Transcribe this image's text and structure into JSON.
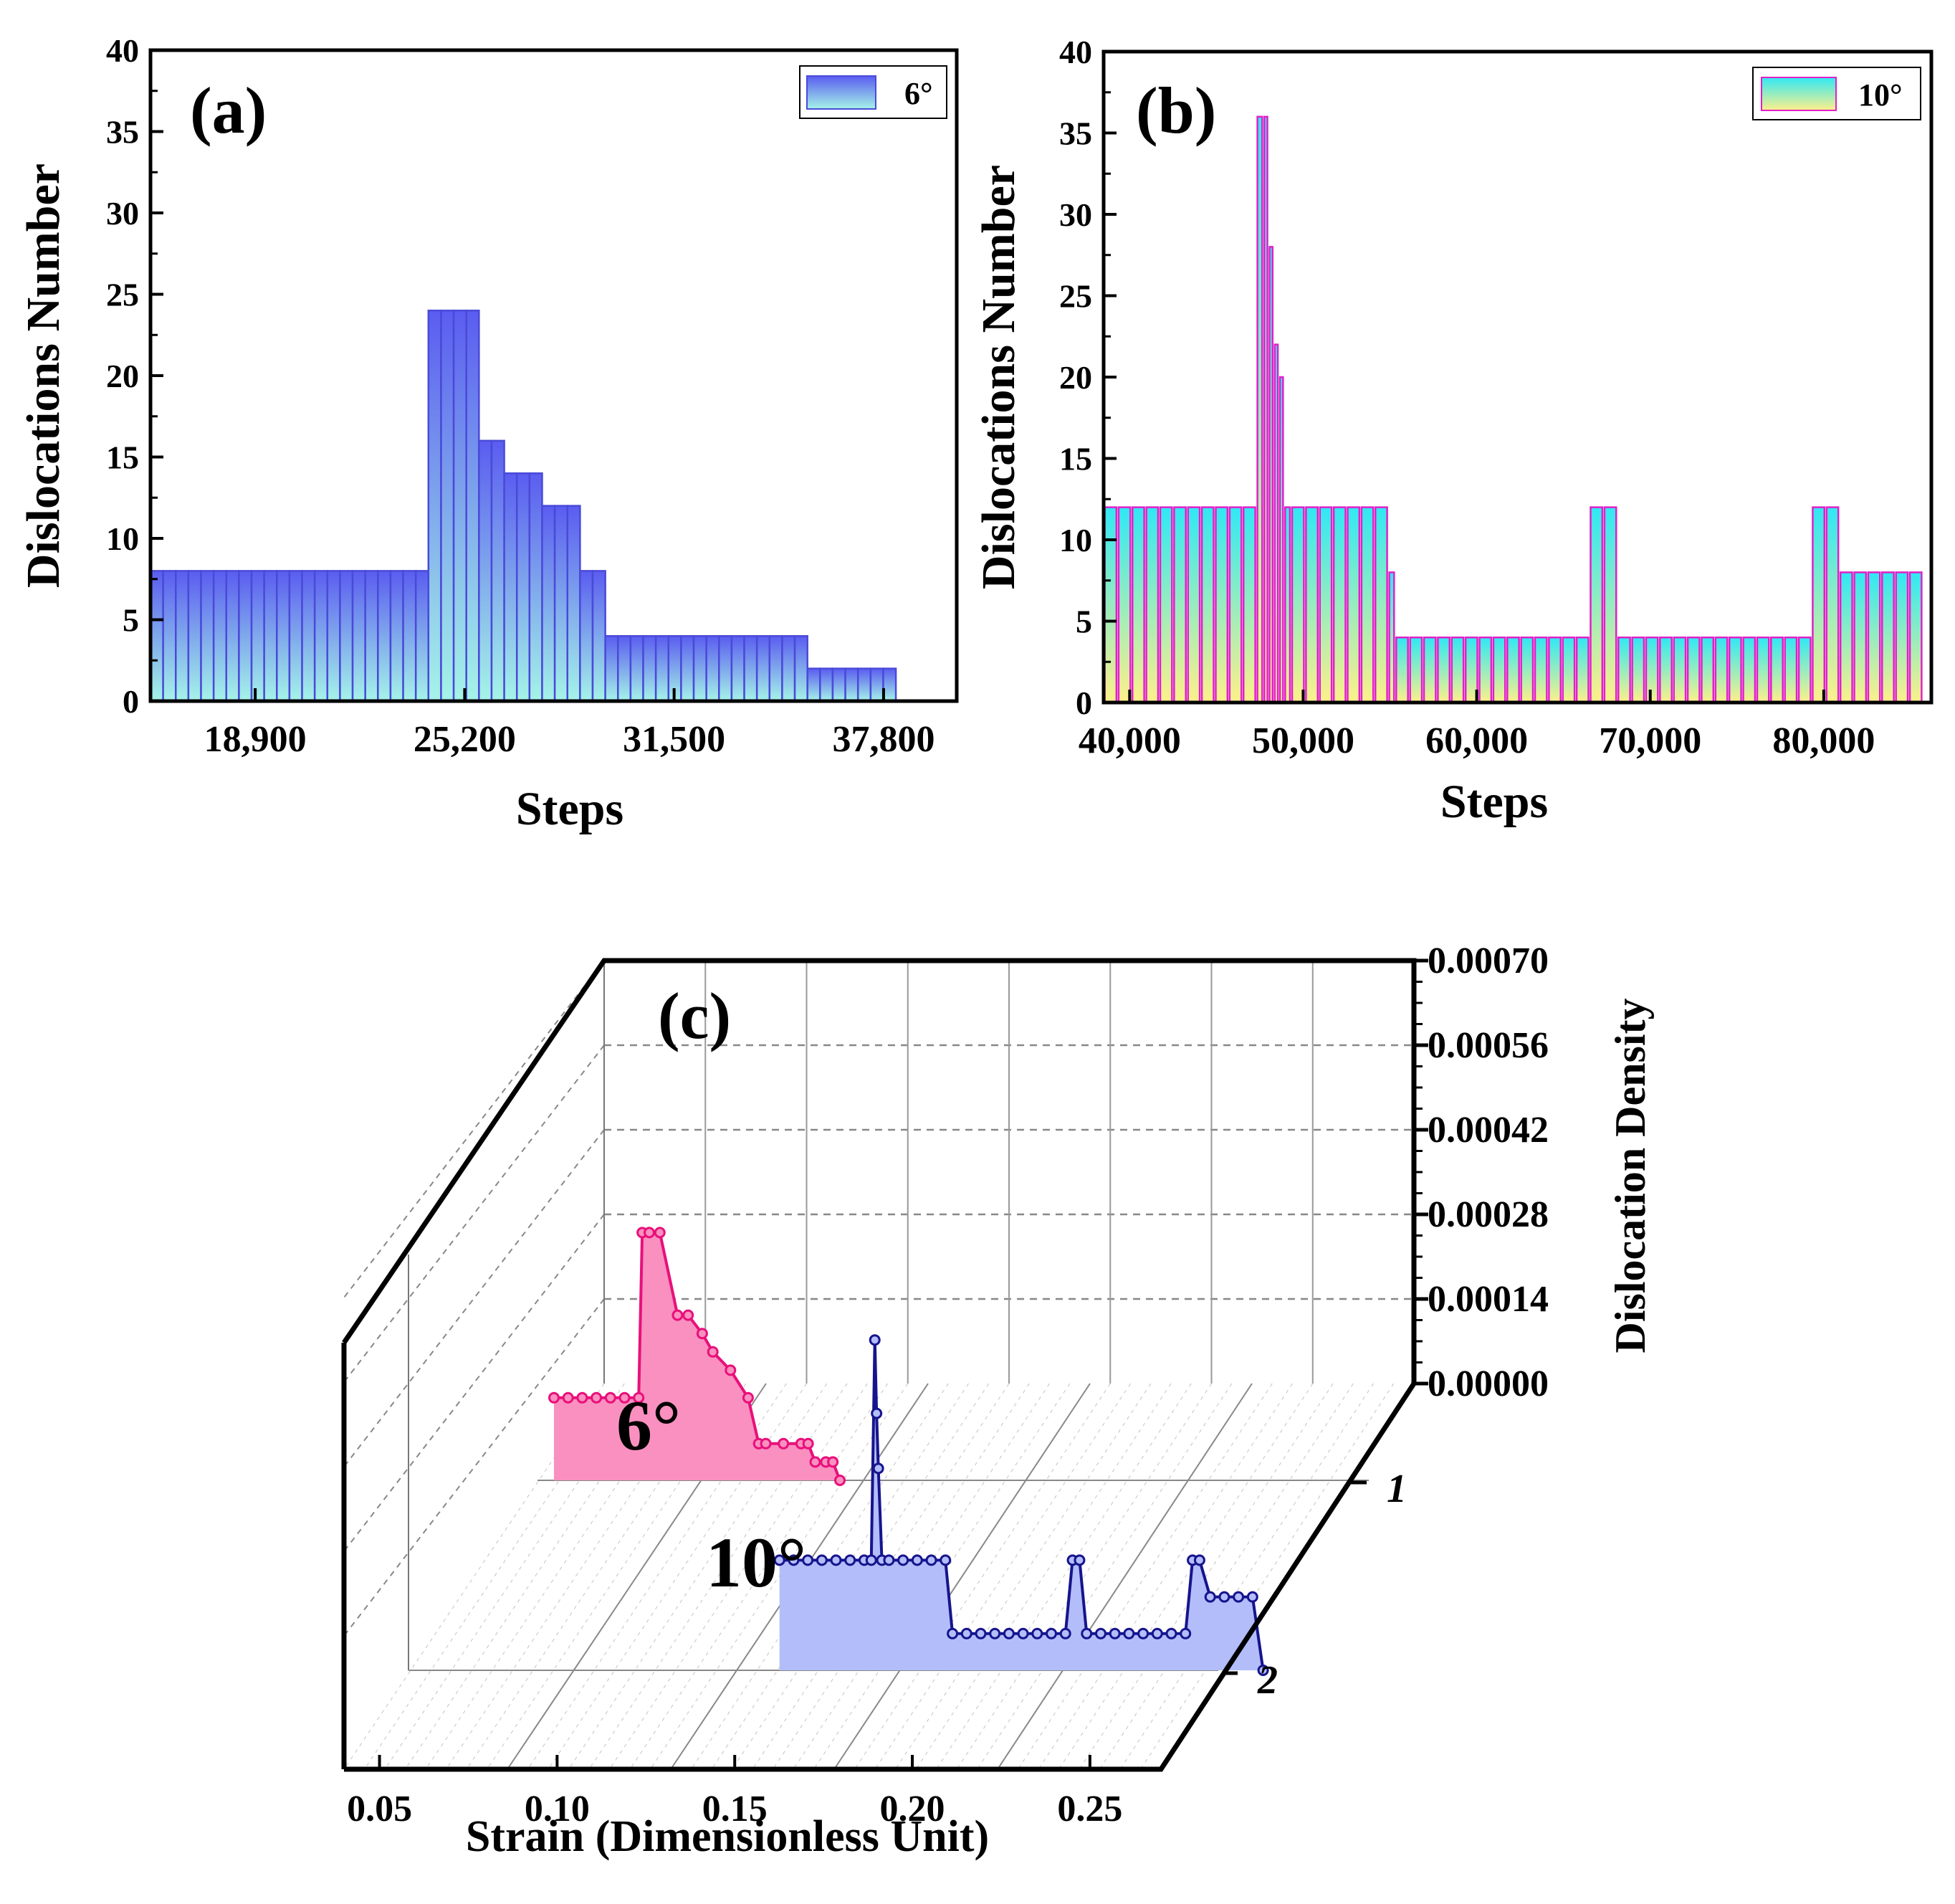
{
  "chart_data": [
    {
      "panel": "a",
      "type": "bar",
      "panel_label": "(a)",
      "xlabel": "Steps",
      "ylabel": "Dislocations Number",
      "xlim": [
        15750,
        40000
      ],
      "ylim": [
        0,
        40
      ],
      "xticks": [
        "18,900",
        "25,200",
        "31,500",
        "37,800"
      ],
      "xtick_values": [
        18900,
        25200,
        31500,
        37800
      ],
      "yticks": [
        "0",
        "5",
        "10",
        "15",
        "20",
        "25",
        "30",
        "35",
        "40"
      ],
      "legend": "6°",
      "colors": {
        "top": "#5a5cf0",
        "bottom": "#a5f4e8",
        "edge": "#4a4ad8"
      },
      "bin_edges": [
        15750,
        16130,
        16510,
        16890,
        17270,
        17650,
        18030,
        18410,
        18790,
        19170,
        19550,
        19930,
        20310,
        20690,
        21070,
        21450,
        21830,
        22210,
        22590,
        22970,
        23350,
        23730,
        24110,
        24490,
        24870,
        25250,
        25630,
        26010,
        26390,
        26770,
        27150,
        27530,
        27910,
        28290,
        28670,
        29050,
        29430,
        29810,
        30190,
        30570,
        30950,
        31330,
        31710,
        32090,
        32470,
        32850,
        33230,
        33610,
        33990,
        34370,
        34750,
        35130,
        35510,
        35890,
        36270,
        36650,
        37030,
        37410,
        37790,
        38170
      ],
      "values": [
        8,
        8,
        8,
        8,
        8,
        8,
        8,
        8,
        8,
        8,
        8,
        8,
        8,
        8,
        8,
        8,
        8,
        8,
        8,
        8,
        8,
        8,
        24,
        24,
        24,
        24,
        16,
        16,
        14,
        14,
        14,
        12,
        12,
        12,
        8,
        8,
        4,
        4,
        4,
        4,
        4,
        4,
        4,
        4,
        4,
        4,
        4,
        4,
        4,
        4,
        4,
        4,
        2,
        2,
        2,
        2,
        2,
        2,
        2
      ]
    },
    {
      "panel": "b",
      "type": "bar",
      "panel_label": "(b)",
      "xlabel": "Steps",
      "ylabel": "Dislocations Number",
      "xlim": [
        38500,
        86200
      ],
      "ylim": [
        0,
        40
      ],
      "xticks": [
        "40,000",
        "50,000",
        "60,000",
        "70,000",
        "80,000"
      ],
      "xtick_values": [
        40000,
        50000,
        60000,
        70000,
        80000
      ],
      "yticks": [
        "0",
        "5",
        "10",
        "15",
        "20",
        "25",
        "30",
        "35",
        "40"
      ],
      "legend": "10°",
      "colors": {
        "top": "#30e8f4",
        "bottom": "#fef08a",
        "edge": "#e020c8"
      },
      "bin_edges": [
        38500,
        39300,
        40100,
        40900,
        41700,
        42500,
        43300,
        44100,
        44900,
        45700,
        46500,
        47300,
        47700,
        48000,
        48300,
        48600,
        48900,
        49300,
        50100,
        50900,
        51700,
        52500,
        53300,
        54100,
        54900,
        55300,
        56100,
        56900,
        57700,
        58500,
        59300,
        60100,
        60900,
        61700,
        62500,
        63300,
        64100,
        64900,
        65700,
        66500,
        67300,
        68100,
        68900,
        69700,
        70500,
        71300,
        72100,
        72900,
        73700,
        74500,
        75300,
        76100,
        76900,
        77700,
        78500,
        79300,
        80100,
        80900,
        81700,
        82500,
        83300,
        84100,
        84900,
        85700
      ],
      "values": [
        12,
        12,
        12,
        12,
        12,
        12,
        12,
        12,
        12,
        12,
        12,
        36,
        36,
        28,
        22,
        20,
        12,
        12,
        12,
        12,
        12,
        12,
        12,
        12,
        8,
        4,
        4,
        4,
        4,
        4,
        4,
        4,
        4,
        4,
        4,
        4,
        4,
        4,
        4,
        12,
        12,
        4,
        4,
        4,
        4,
        4,
        4,
        4,
        4,
        4,
        4,
        4,
        4,
        4,
        4,
        12,
        12,
        8,
        8,
        8,
        8,
        8,
        8
      ]
    },
    {
      "panel": "c",
      "type": "area",
      "panel_label": "(c)",
      "xlabel": "Strain (Dimensionless Unit)",
      "zlabel": "Dislocation Density",
      "xlim": [
        0.04,
        0.27
      ],
      "xticks": [
        "0.05",
        "0.10",
        "0.15",
        "0.20",
        "0.25"
      ],
      "xtick_values": [
        0.05,
        0.1,
        0.15,
        0.2,
        0.25
      ],
      "zlim": [
        0,
        0.0007
      ],
      "zticks": [
        "0.00000",
        "0.00014",
        "0.00028",
        "0.00042",
        "0.00056",
        "0.00070"
      ],
      "ytick_labels": [
        "1",
        "2"
      ],
      "series": [
        {
          "name": "6°",
          "label": "6°",
          "row": 1,
          "line_color": "#e8107a",
          "fill_color": "#f990c0",
          "x": [
            0.04,
            0.044,
            0.048,
            0.052,
            0.056,
            0.06,
            0.064,
            0.065,
            0.067,
            0.07,
            0.075,
            0.078,
            0.082,
            0.085,
            0.09,
            0.095,
            0.098,
            0.1,
            0.105,
            0.11,
            0.112,
            0.114,
            0.117,
            0.119,
            0.121
          ],
          "values": [
            9e-05,
            9e-05,
            9e-05,
            9e-05,
            9e-05,
            9e-05,
            9e-05,
            0.00027,
            0.00027,
            0.00027,
            0.00018,
            0.00018,
            0.00016,
            0.00014,
            0.00012,
            9e-05,
            4e-05,
            4e-05,
            4e-05,
            4e-05,
            4e-05,
            2e-05,
            2e-05,
            2e-05,
            0.0
          ]
        },
        {
          "name": "10°",
          "label": "10°",
          "row": 2,
          "line_color": "#16148c",
          "fill_color": "#b3bdfa",
          "x": [
            0.071,
            0.075,
            0.079,
            0.083,
            0.087,
            0.091,
            0.095,
            0.097,
            0.098,
            0.0985,
            0.099,
            0.1,
            0.102,
            0.106,
            0.11,
            0.114,
            0.118,
            0.12,
            0.124,
            0.128,
            0.132,
            0.136,
            0.14,
            0.144,
            0.148,
            0.152,
            0.154,
            0.156,
            0.158,
            0.162,
            0.166,
            0.17,
            0.174,
            0.178,
            0.182,
            0.186,
            0.188,
            0.19,
            0.193,
            0.197,
            0.201,
            0.205,
            0.208
          ],
          "values": [
            0.00012,
            0.00012,
            0.00012,
            0.00012,
            0.00012,
            0.00012,
            0.00012,
            0.00012,
            0.00036,
            0.00028,
            0.00022,
            0.00012,
            0.00012,
            0.00012,
            0.00012,
            0.00012,
            0.00012,
            4e-05,
            4e-05,
            4e-05,
            4e-05,
            4e-05,
            4e-05,
            4e-05,
            4e-05,
            4e-05,
            0.00012,
            0.00012,
            4e-05,
            4e-05,
            4e-05,
            4e-05,
            4e-05,
            4e-05,
            4e-05,
            4e-05,
            0.00012,
            0.00012,
            8e-05,
            8e-05,
            8e-05,
            8e-05,
            0.0
          ]
        }
      ]
    }
  ]
}
